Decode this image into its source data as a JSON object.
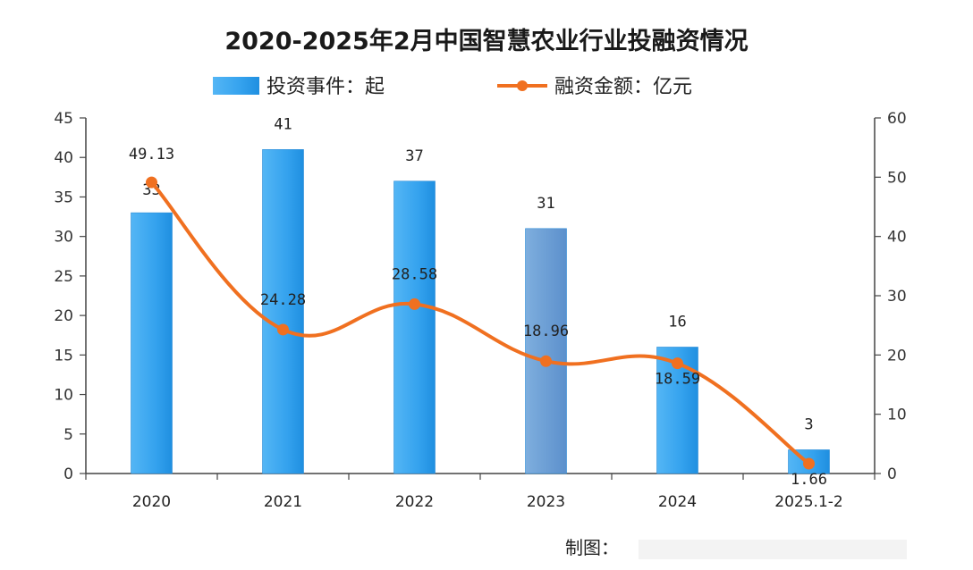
{
  "chart_data": {
    "type": "bar+line",
    "title": "2020-2025年2月中国智慧农业行业投融资情况",
    "categories": [
      "2020",
      "2021",
      "2022",
      "2023",
      "2024",
      "2025.1-2"
    ],
    "series": [
      {
        "name": "投资事件：起",
        "type": "bar",
        "axis": "left",
        "values": [
          33,
          41,
          37,
          31,
          16,
          3
        ],
        "labels": [
          "33",
          "41",
          "37",
          "31",
          "16",
          "3"
        ]
      },
      {
        "name": "融资金额：亿元",
        "type": "line",
        "axis": "right",
        "values": [
          49.13,
          24.28,
          28.58,
          18.96,
          18.59,
          1.66
        ],
        "labels": [
          "49.13",
          "24.28",
          "28.58",
          "18.96",
          "18.59",
          "1.66"
        ]
      }
    ],
    "y_left": {
      "min": 0,
      "max": 45,
      "step": 5,
      "ticks": [
        "0",
        "5",
        "10",
        "15",
        "20",
        "25",
        "30",
        "35",
        "40",
        "45"
      ]
    },
    "y_right": {
      "min": 0,
      "max": 60,
      "step": 10,
      "ticks": [
        "0",
        "10",
        "20",
        "30",
        "40",
        "50",
        "60"
      ]
    },
    "legend_position": "top",
    "grid": false,
    "colors": {
      "bar": "#3fa9f0",
      "bar_dark": "#1c8ee0",
      "bar_highlight": "#6b9fd6",
      "line": "#f07020",
      "axis": "#444444"
    }
  },
  "footer": {
    "source_label": "制图："
  }
}
